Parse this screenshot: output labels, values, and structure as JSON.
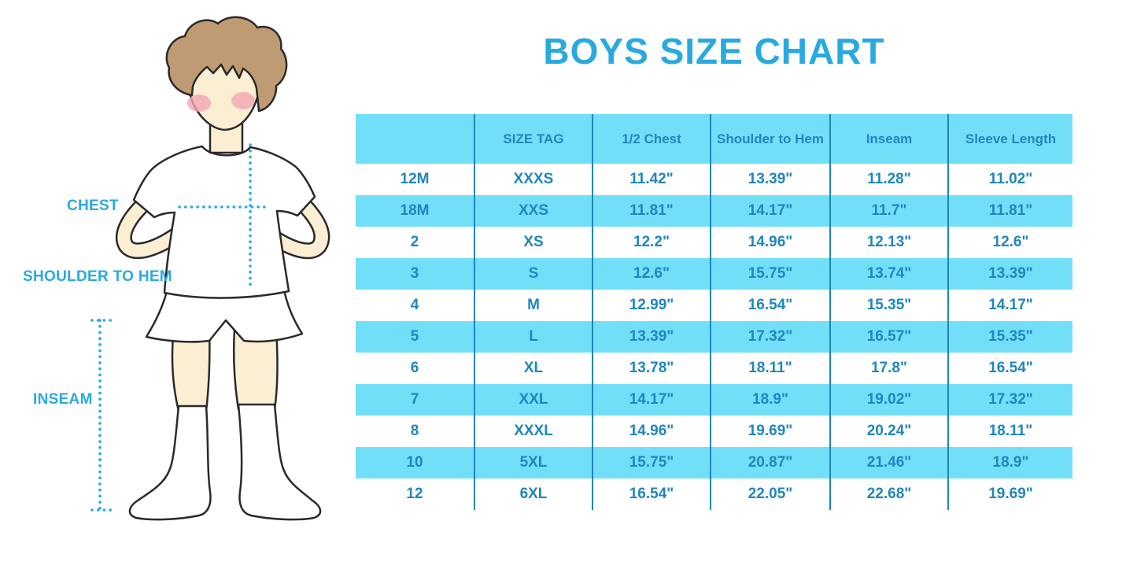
{
  "title": "BOYS SIZE CHART",
  "figure": {
    "labels": {
      "chest": "CHEST",
      "shoulder_to_hem": "SHOULDER TO HEM",
      "inseam": "INSEAM"
    }
  },
  "table": {
    "headers": [
      "",
      "SIZE TAG",
      "1/2 Chest",
      "Shoulder to Hem",
      "Inseam",
      "Sleeve Length"
    ],
    "rows": [
      [
        "12M",
        "XXXS",
        "11.42\"",
        "13.39\"",
        "11.28\"",
        "11.02\""
      ],
      [
        "18M",
        "XXS",
        "11.81\"",
        "14.17\"",
        "11.7\"",
        "11.81\""
      ],
      [
        "2",
        "XS",
        "12.2\"",
        "14.96\"",
        "12.13\"",
        "12.6\""
      ],
      [
        "3",
        "S",
        "12.6\"",
        "15.75\"",
        "13.74\"",
        "13.39\""
      ],
      [
        "4",
        "M",
        "12.99\"",
        "16.54\"",
        "15.35\"",
        "14.17\""
      ],
      [
        "5",
        "L",
        "13.39\"",
        "17.32\"",
        "16.57\"",
        "15.35\""
      ],
      [
        "6",
        "XL",
        "13.78\"",
        "18.11\"",
        "17.8\"",
        "16.54\""
      ],
      [
        "7",
        "XXL",
        "14.17\"",
        "18.9\"",
        "19.02\"",
        "17.32\""
      ],
      [
        "8",
        "XXXL",
        "14.96\"",
        "19.69\"",
        "20.24\"",
        "18.11\""
      ],
      [
        "10",
        "5XL",
        "15.75\"",
        "20.87\"",
        "21.46\"",
        "18.9\""
      ],
      [
        "12",
        "6XL",
        "16.54\"",
        "22.05\"",
        "22.68\"",
        "19.69\""
      ]
    ]
  },
  "colors": {
    "accent_blue": "#29A9E0",
    "table_text": "#1F86BE",
    "row_fill": "#72DFF8",
    "hair": "#BE9B73",
    "skin": "#FBEED3",
    "blush": "#F1A6B4"
  }
}
